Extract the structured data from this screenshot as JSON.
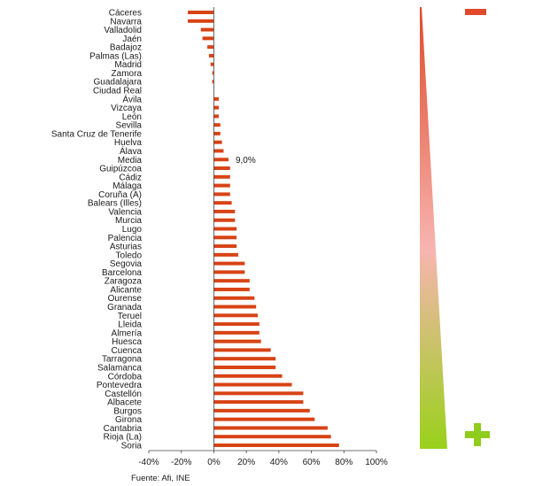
{
  "chart_data": {
    "type": "bar",
    "orientation": "horizontal",
    "categories": [
      "Cáceres",
      "Navarra",
      "Valladolid",
      "Jaén",
      "Badajoz",
      "Palmas (Las)",
      "Madrid",
      "Zamora",
      "Guadalajara",
      "Ciudad Real",
      "Ávila",
      "Vizcaya",
      "León",
      "Sevilla",
      "Santa Cruz de Tenerife",
      "Huelva",
      "Álava",
      "Media",
      "Guipúzcoa",
      "Cádiz",
      "Málaga",
      "Coruña (A)",
      "Balears (Illes)",
      "Valencia",
      "Murcia",
      "Lugo",
      "Palencia",
      "Asturias",
      "Toledo",
      "Segovia",
      "Barcelona",
      "Zaragoza",
      "Alicante",
      "Ourense",
      "Granada",
      "Teruel",
      "Lleida",
      "Almería",
      "Huesca",
      "Cuenca",
      "Tarragona",
      "Salamanca",
      "Córdoba",
      "Pontevedra",
      "Castellón",
      "Albacete",
      "Burgos",
      "Girona",
      "Cantabria",
      "Rioja (La)",
      "Soria"
    ],
    "values": [
      -16,
      -16,
      -8,
      -7,
      -4,
      -3,
      -2,
      -1,
      -1,
      0,
      3,
      3,
      3,
      4,
      4,
      5,
      6,
      9,
      10,
      10,
      10,
      10,
      11,
      13,
      13,
      14,
      14,
      14,
      15,
      19,
      19,
      22,
      22,
      25,
      26,
      27,
      28,
      28,
      29,
      35,
      38,
      38,
      42,
      48,
      55,
      55,
      59,
      62,
      70,
      72,
      77
    ],
    "annotations": [
      {
        "category": "Media",
        "text": "9,0%"
      }
    ],
    "xlim": [
      -40,
      100
    ],
    "xticks": [
      -40,
      -20,
      0,
      20,
      40,
      60,
      80,
      100
    ],
    "xtick_labels": [
      "-40%",
      "-20%",
      "0%",
      "20%",
      "40%",
      "60%",
      "80%",
      "100%"
    ],
    "bar_color": "#d84315",
    "grid": false,
    "title": "",
    "xlabel": "",
    "ylabel": ""
  },
  "source": "Fuente: Afi, INE",
  "legend_scale": {
    "top_symbol": "minus",
    "bottom_symbol": "plus",
    "top_color": "#e04a2a",
    "mid_color": "#f7b5b0",
    "bottom_color": "#99d11a",
    "minus_color": "#e04a2a",
    "plus_color": "#8fcc1c"
  }
}
